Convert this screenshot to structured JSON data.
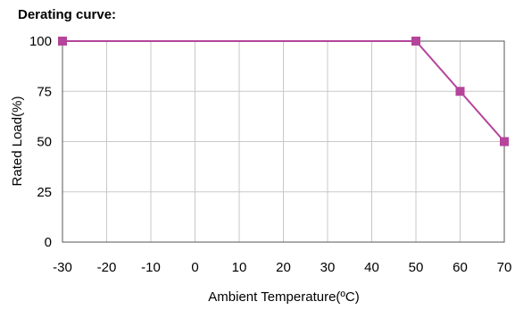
{
  "chart_data": {
    "type": "line",
    "title": "Derating curve:",
    "xlabel": "Ambient Temperature(ºC)",
    "ylabel": "Rated Load(%)",
    "xlim": [
      -30,
      70
    ],
    "ylim": [
      0,
      100
    ],
    "xticks": [
      "-30",
      "-20",
      "-10",
      "0",
      "10",
      "20",
      "30",
      "40",
      "50",
      "60",
      "70"
    ],
    "yticks": [
      "0",
      "25",
      "50",
      "75",
      "100"
    ],
    "grid": true,
    "series": [
      {
        "x": [
          -30,
          50,
          60,
          70
        ],
        "y": [
          100,
          100,
          75,
          50
        ],
        "color": "#b5449b",
        "marker": "square"
      }
    ]
  }
}
